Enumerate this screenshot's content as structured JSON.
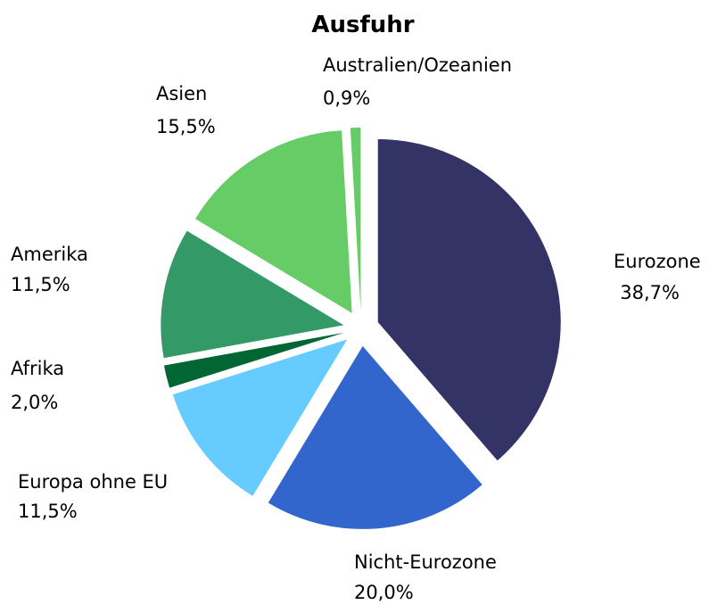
{
  "chart_data": {
    "type": "pie",
    "title": "Ausfuhr",
    "categories": [
      "Eurozone",
      "Nicht-Eurozone",
      "Europa ohne EU",
      "Afrika",
      "Amerika",
      "Asien",
      "Australien/Ozeanien"
    ],
    "values": [
      38.7,
      20.0,
      11.5,
      2.0,
      11.5,
      15.5,
      0.9
    ],
    "value_labels": [
      "38,7%",
      "20,0%",
      "11,5%",
      "2,0%",
      "11,5%",
      "15,5%",
      "0,9%"
    ],
    "colors": [
      "#333366",
      "#3366cc",
      "#66ccff",
      "#006633",
      "#339966",
      "#66cc66",
      "#66cc66"
    ]
  }
}
